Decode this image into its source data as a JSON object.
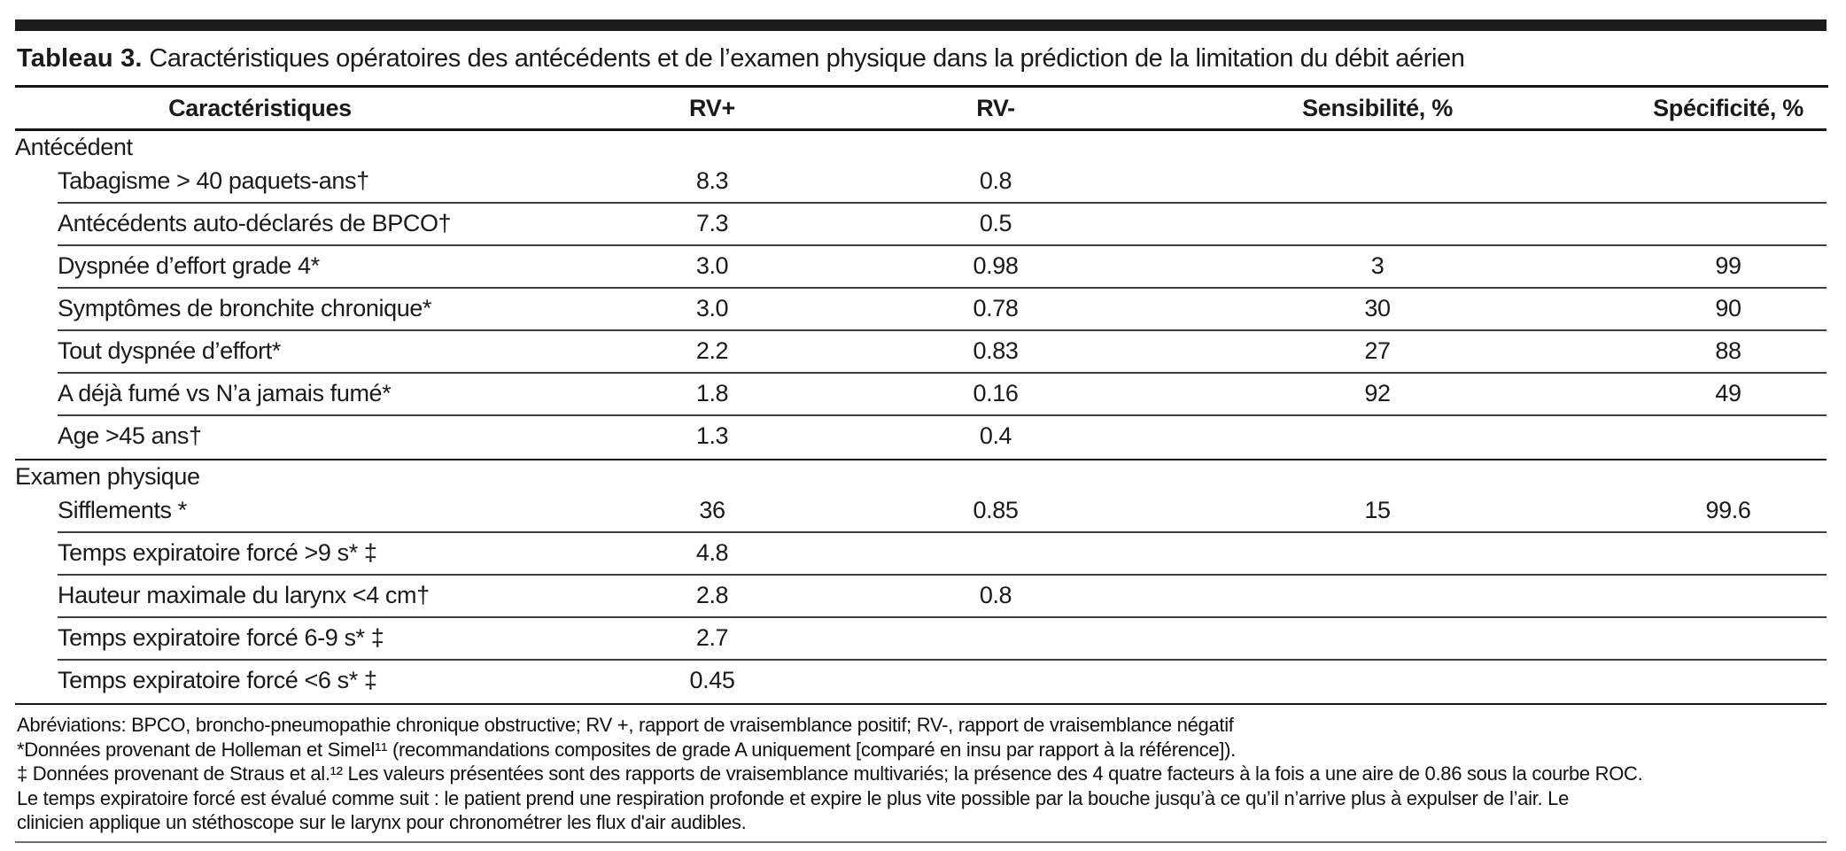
{
  "title": {
    "label": "Tableau 3.",
    "text": "Caractéristiques opératoires des antécédents et de l’examen physique dans la prédiction de la limitation du débit aérien"
  },
  "table": {
    "columns": [
      "Caractéristiques",
      "RV+",
      "RV-",
      "Sensibilité, %",
      "Spécificité, %"
    ],
    "rows": [
      {
        "type": "section",
        "label": "Antécédent",
        "values": [
          "",
          "",
          "",
          ""
        ]
      },
      {
        "type": "data",
        "label": "Tabagisme > 40 paquets-ans†",
        "values": [
          "8.3",
          "0.8",
          "",
          ""
        ]
      },
      {
        "type": "data",
        "label": "Antécédents auto-déclarés de BPCO†",
        "values": [
          "7.3",
          "0.5",
          "",
          ""
        ]
      },
      {
        "type": "data",
        "label": "Dyspnée d’effort grade 4*",
        "values": [
          "3.0",
          "0.98",
          "3",
          "99"
        ]
      },
      {
        "type": "data",
        "label": "Symptômes de bronchite chronique*",
        "values": [
          "3.0",
          "0.78",
          "30",
          "90"
        ]
      },
      {
        "type": "data",
        "label": "Tout dyspnée d’effort*",
        "values": [
          "2.2",
          "0.83",
          "27",
          "88"
        ]
      },
      {
        "type": "data",
        "label": "A déjà fumé vs N’a jamais fumé*",
        "values": [
          "1.8",
          "0.16",
          "92",
          "49"
        ]
      },
      {
        "type": "data",
        "label": "Age >45 ans†",
        "values": [
          "1.3",
          "0.4",
          "",
          ""
        ]
      },
      {
        "type": "section",
        "label": "Examen physique",
        "values": [
          "",
          "",
          "",
          ""
        ]
      },
      {
        "type": "data",
        "label": "Sifflements *",
        "values": [
          "36",
          "0.85",
          "15",
          "99.6"
        ]
      },
      {
        "type": "data",
        "label": "Temps expiratoire forcé >9 s* ‡",
        "values": [
          "4.8",
          "",
          "",
          ""
        ]
      },
      {
        "type": "data",
        "label": "Hauteur maximale du larynx <4 cm†",
        "values": [
          "2.8",
          "0.8",
          "",
          ""
        ]
      },
      {
        "type": "data",
        "label": "Temps expiratoire forcé 6-9 s* ‡",
        "values": [
          "2.7",
          "",
          "",
          ""
        ]
      },
      {
        "type": "data",
        "label": "Temps expiratoire forcé <6 s* ‡",
        "values": [
          "0.45",
          "",
          "",
          ""
        ]
      }
    ]
  },
  "footnotes": [
    "Abréviations: BPCO, broncho-pneumopathie  chronique obstructive; RV +, rapport de vraisemblance positif; RV-, rapport de vraisemblance négatif",
    "*Données provenant de Holleman et Simel¹¹ (recommandations composites de grade A uniquement [comparé en insu par rapport à la référence]).",
    "‡ Données provenant de Straus et al.¹² Les valeurs présentées sont des rapports de vraisemblance multivariés; la présence des 4 quatre facteurs à la fois a une aire  de 0.86 sous la courbe ROC.",
    "Le temps expiratoire forcé est évalué comme suit : le patient prend une respiration profonde et expire le plus vite possible par la bouche  jusqu’à ce qu’il n’arrive plus à expulser de l’air. Le",
    "clinicien applique un  stéthoscope sur le larynx pour chronométrer les flux d'air audibles."
  ]
}
